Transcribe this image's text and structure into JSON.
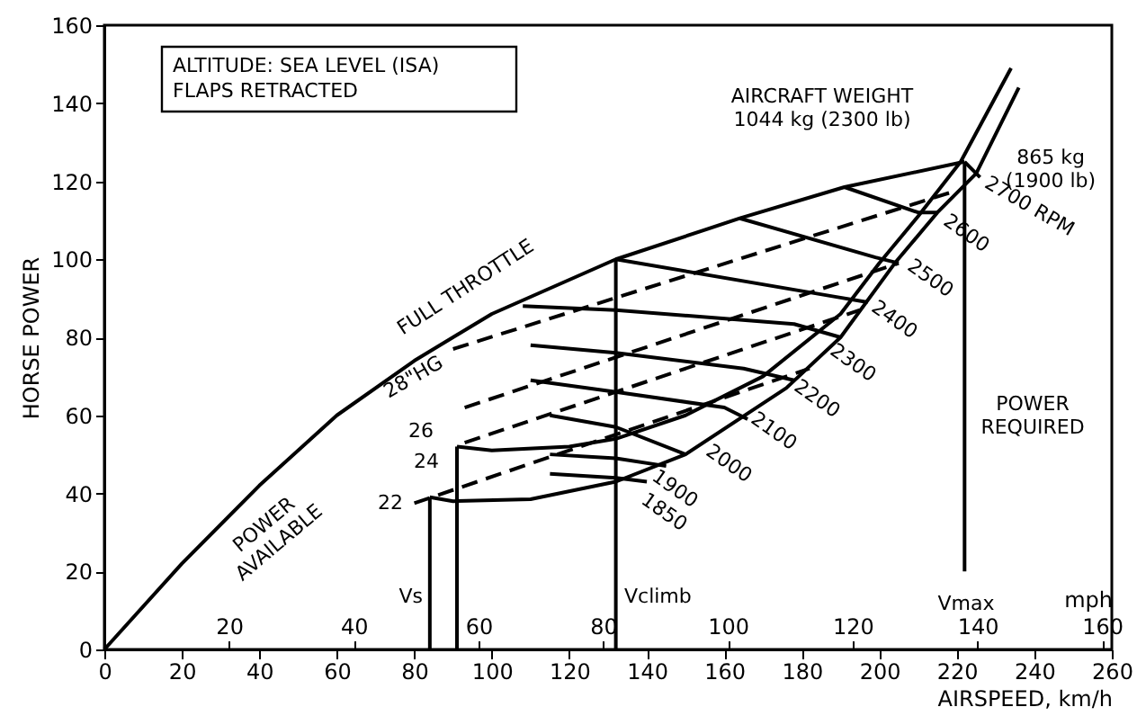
{
  "chart_data": {
    "type": "line",
    "xlabel": "AIRSPEED, km/h",
    "ylabel": "HORSE POWER",
    "x2label": "mph",
    "xlim": [
      0,
      260
    ],
    "xticks": [
      0,
      20,
      40,
      60,
      80,
      100,
      120,
      140,
      160,
      180,
      200,
      220,
      240,
      260
    ],
    "ylim": [
      0,
      160
    ],
    "yticks": [
      0,
      20,
      40,
      60,
      80,
      100,
      120,
      140,
      160
    ],
    "x2lim": [
      0,
      161.56
    ],
    "x2ticks": [
      20,
      40,
      60,
      80,
      100,
      120,
      140,
      160
    ],
    "grid": false,
    "marker": "none",
    "series": [
      {
        "color": "#000000",
        "line_style": "solid",
        "x": [
          0,
          20,
          40,
          60,
          80,
          100,
          132,
          164,
          191,
          222
        ],
        "values": [
          0,
          22,
          42,
          60,
          74,
          86,
          100,
          110.5,
          118.5,
          125
        ]
      },
      {
        "color": "#000000",
        "line_style": "solid",
        "x": [
          91,
          100,
          120,
          132,
          150,
          170,
          190,
          200,
          210,
          221,
          234
        ],
        "values": [
          52,
          51,
          52,
          54,
          60,
          70,
          86,
          99,
          111,
          125,
          149
        ]
      },
      {
        "color": "#000000",
        "line_style": "solid",
        "x": [
          84,
          90,
          110,
          132,
          150,
          176,
          190,
          204,
          215,
          225,
          236
        ],
        "values": [
          39,
          38,
          38.5,
          43,
          50,
          67,
          80,
          99,
          112,
          122,
          144
        ]
      },
      {
        "color": "#000000",
        "line_style": "dashed",
        "x": [
          80,
          182
        ],
        "values": [
          37.5,
          72
        ]
      },
      {
        "color": "#000000",
        "line_style": "dashed",
        "x": [
          93,
          195
        ],
        "values": [
          53,
          87
        ]
      },
      {
        "color": "#000000",
        "line_style": "dashed",
        "x": [
          93,
          205
        ],
        "values": [
          62,
          99
        ]
      },
      {
        "color": "#000000",
        "line_style": "dashed",
        "x": [
          90,
          218
        ],
        "values": [
          77,
          117
        ]
      },
      {
        "color": "#000000",
        "line_style": "solid",
        "x": [
          222,
          226
        ],
        "values": [
          125,
          121
        ]
      },
      {
        "color": "#000000",
        "line_style": "solid",
        "x": [
          191,
          210,
          215
        ],
        "values": [
          118.5,
          112,
          112
        ]
      },
      {
        "color": "#000000",
        "line_style": "solid",
        "x": [
          164,
          199,
          205
        ],
        "values": [
          110.5,
          100.5,
          99
        ]
      },
      {
        "color": "#000000",
        "line_style": "solid",
        "x": [
          132,
          188.6,
          197
        ],
        "values": [
          100,
          90.4,
          89
        ]
      },
      {
        "color": "#000000",
        "line_style": "solid",
        "x": [
          108,
          132,
          178,
          190
        ],
        "values": [
          88,
          87,
          83.4,
          80
        ]
      },
      {
        "color": "#000000",
        "line_style": "solid",
        "x": [
          110,
          132,
          165,
          178
        ],
        "values": [
          78,
          76,
          72,
          69
        ]
      },
      {
        "color": "#000000",
        "line_style": "solid",
        "x": [
          110,
          132,
          160,
          166
        ],
        "values": [
          69,
          66,
          62,
          59
        ]
      },
      {
        "color": "#000000",
        "line_style": "solid",
        "x": [
          115,
          132,
          150
        ],
        "values": [
          60,
          57,
          50
        ]
      },
      {
        "color": "#000000",
        "line_style": "solid",
        "x": [
          115,
          132,
          145
        ],
        "values": [
          50,
          49,
          47
        ]
      },
      {
        "color": "#000000",
        "line_style": "solid",
        "x": [
          115,
          132,
          140
        ],
        "values": [
          45,
          44,
          43
        ]
      },
      {
        "color": "#000000",
        "line_style": "solid",
        "x": [
          84,
          84
        ],
        "values": [
          0,
          39
        ]
      },
      {
        "color": "#000000",
        "line_style": "solid",
        "x": [
          91,
          91
        ],
        "values": [
          0,
          52
        ]
      },
      {
        "color": "#000000",
        "line_style": "solid",
        "x": [
          132,
          132
        ],
        "values": [
          0,
          100
        ]
      },
      {
        "color": "#000000",
        "line_style": "solid",
        "x": [
          222,
          222
        ],
        "values": [
          20,
          125
        ]
      }
    ],
    "annotations": [
      "ALTITUDE: SEA LEVEL (ISA)\nFLAPS RETRACTED",
      "FULL THROTTLE",
      "POWER\nAVAILABLE",
      "AIRCRAFT WEIGHT\n1044 kg (2300 lb)",
      "865 kg\n(1900 lb)",
      "POWER\nREQUIRED",
      "28\"HG",
      "26",
      "24",
      "22",
      "2700 RPM",
      "2600",
      "2500",
      "2400",
      "2300",
      "2200",
      "2100",
      "2000",
      "1900",
      "1850",
      "Vs",
      "Vclimb",
      "Vmax"
    ]
  }
}
